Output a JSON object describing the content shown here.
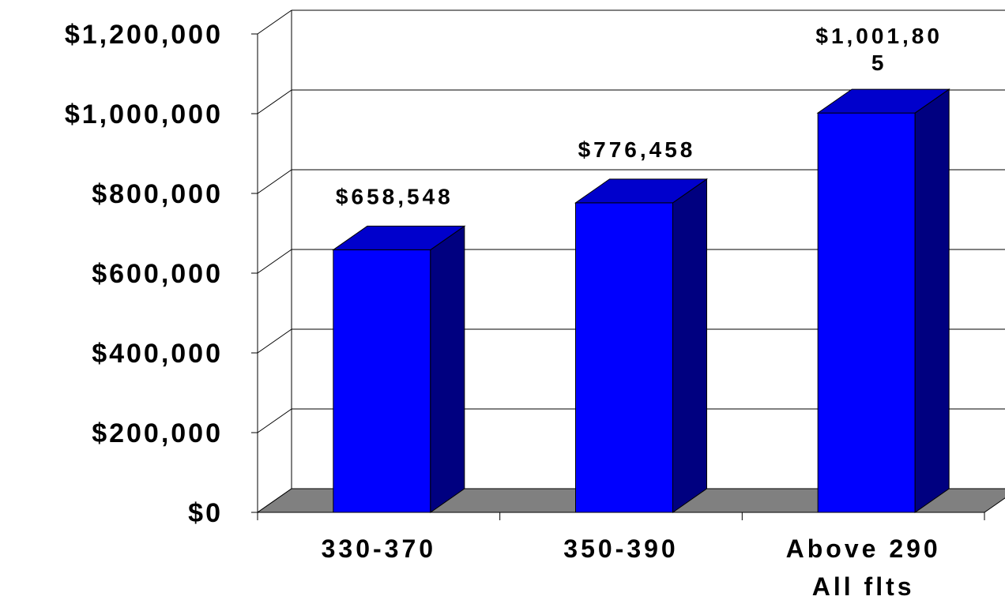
{
  "chart_data": {
    "type": "bar",
    "three_d": true,
    "categories": [
      "330-370",
      "350-390",
      "Above 290 All flts"
    ],
    "category_lines": [
      [
        "330-370"
      ],
      [
        "350-390"
      ],
      [
        "Above 290",
        "All flts"
      ]
    ],
    "values": [
      658548,
      776458,
      1001805
    ],
    "data_labels": [
      [
        "$658,548"
      ],
      [
        "$776,458"
      ],
      [
        "$1,001,80",
        "5"
      ]
    ],
    "y_ticks": [
      "$0",
      "$200,000",
      "$400,000",
      "$600,000",
      "$800,000",
      "$1,000,000",
      "$1,200,000"
    ],
    "ylim": [
      0,
      1200000
    ],
    "grid": true,
    "legend": "none",
    "title": "",
    "xlabel": "",
    "ylabel": "",
    "colors": {
      "bar_front": "#0000ff",
      "bar_top": "#0000cc",
      "bar_side": "#000080",
      "floor": "#808080",
      "grid": "#000000"
    }
  }
}
